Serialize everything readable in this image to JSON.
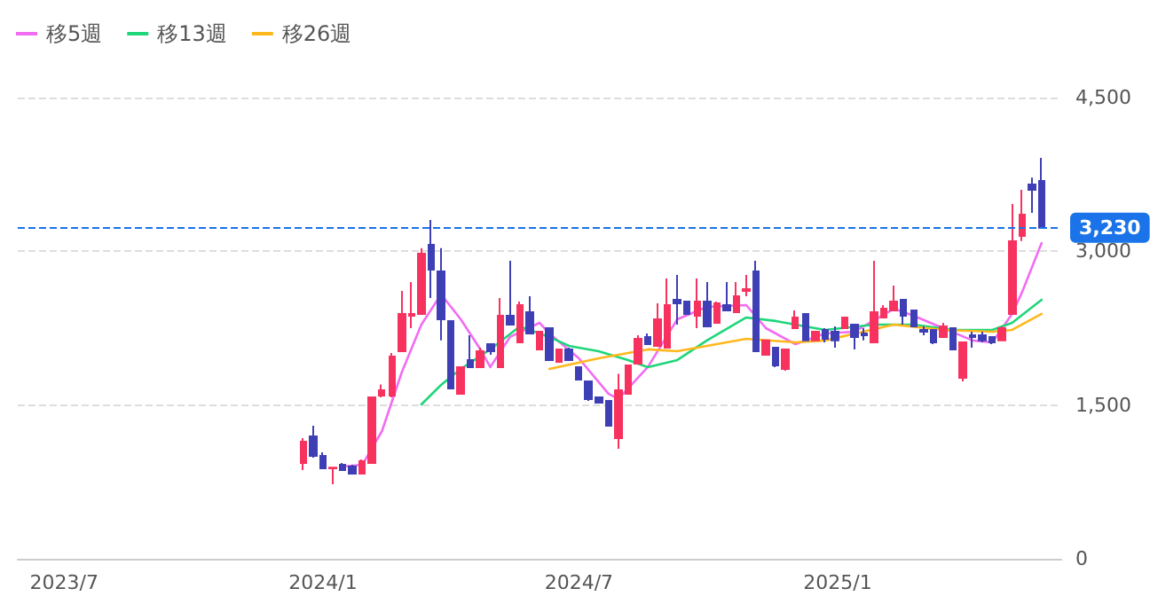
{
  "chart_data": {
    "type": "candlestick",
    "x": [
      "2023-12-18",
      "2023-12-25",
      "2024-01-01",
      "2024-01-08",
      "2024-01-15",
      "2024-01-22",
      "2024-01-29",
      "2024-02-05",
      "2024-02-12",
      "2024-02-19",
      "2024-02-26",
      "2024-03-04",
      "2024-03-11",
      "2024-03-18",
      "2024-03-25",
      "2024-04-01",
      "2024-04-08",
      "2024-04-15",
      "2024-04-22",
      "2024-04-29",
      "2024-05-06",
      "2024-05-13",
      "2024-05-20",
      "2024-05-27",
      "2024-06-03",
      "2024-06-10",
      "2024-06-17",
      "2024-06-24",
      "2024-07-01",
      "2024-07-08",
      "2024-07-15",
      "2024-07-22",
      "2024-07-29",
      "2024-08-05",
      "2024-08-12",
      "2024-08-19",
      "2024-08-26",
      "2024-09-02",
      "2024-09-09",
      "2024-09-16",
      "2024-09-23",
      "2024-09-30",
      "2024-10-07",
      "2024-10-14",
      "2024-10-21",
      "2024-10-28",
      "2024-11-04",
      "2024-11-11",
      "2024-11-18",
      "2024-11-25",
      "2024-12-02",
      "2024-12-09",
      "2024-12-16",
      "2024-12-23",
      "2024-12-30",
      "2025-01-06",
      "2025-01-13",
      "2025-01-20",
      "2025-01-27",
      "2025-02-03",
      "2025-02-10",
      "2025-02-17",
      "2025-02-24",
      "2025-03-03",
      "2025-03-10",
      "2025-03-17",
      "2025-03-24",
      "2025-03-31",
      "2025-04-07",
      "2025-04-14",
      "2025-04-21",
      "2025-04-28",
      "2025-05-05",
      "2025-05-12",
      "2025-05-19",
      "2025-05-26"
    ],
    "ohlc": [
      [
        935,
        1177,
        866,
        1142
      ],
      [
        1194,
        1298,
        987,
        1004
      ],
      [
        1004,
        1038,
        883,
        883
      ],
      [
        883,
        895,
        727,
        890
      ],
      [
        917,
        935,
        866,
        866
      ],
      [
        900,
        917,
        831,
        831
      ],
      [
        831,
        969,
        831,
        952
      ],
      [
        935,
        1575,
        935,
        1575
      ],
      [
        1592,
        1700,
        1575,
        1644
      ],
      [
        1592,
        2008,
        1575,
        1973
      ],
      [
        2025,
        2614,
        2025,
        2389
      ],
      [
        2371,
        2700,
        2250,
        2389
      ],
      [
        2389,
        3030,
        2389,
        2977
      ],
      [
        3064,
        3305,
        2545,
        2821
      ],
      [
        2804,
        3030,
        2130,
        2337
      ],
      [
        2320,
        2320,
        1662,
        1662
      ],
      [
        1610,
        1870,
        1610,
        1870
      ],
      [
        1939,
        2180,
        1870,
        1870
      ],
      [
        1870,
        2060,
        1870,
        2025
      ],
      [
        2094,
        2094,
        1990,
        2025
      ],
      [
        1870,
        2545,
        1870,
        2371
      ],
      [
        2371,
        2908,
        2285,
        2285
      ],
      [
        2112,
        2510,
        2112,
        2475
      ],
      [
        2406,
        2562,
        2198,
        2198
      ],
      [
        2043,
        2216,
        2043,
        2216
      ],
      [
        2250,
        2250,
        1939,
        1939
      ],
      [
        1921,
        2043,
        1921,
        2043
      ],
      [
        2043,
        2060,
        1939,
        1939
      ],
      [
        1870,
        1870,
        1748,
        1748
      ],
      [
        1731,
        1731,
        1540,
        1558
      ],
      [
        1575,
        1575,
        1523,
        1523
      ],
      [
        1540,
        1540,
        1298,
        1298
      ],
      [
        1177,
        1805,
        1073,
        1644
      ],
      [
        1610,
        1887,
        1610,
        1887
      ],
      [
        1904,
        2180,
        1904,
        2146
      ],
      [
        2164,
        2198,
        2094,
        2094
      ],
      [
        2077,
        2493,
        2077,
        2337
      ],
      [
        2060,
        2735,
        2060,
        2475
      ],
      [
        2527,
        2770,
        2285,
        2493
      ],
      [
        2510,
        2510,
        2389,
        2389
      ],
      [
        2371,
        2735,
        2250,
        2510
      ],
      [
        2510,
        2700,
        2268,
        2268
      ],
      [
        2302,
        2510,
        2302,
        2493
      ],
      [
        2475,
        2700,
        2423,
        2423
      ],
      [
        2406,
        2700,
        2406,
        2562
      ],
      [
        2614,
        2770,
        2562,
        2631
      ],
      [
        2804,
        2908,
        2025,
        2025
      ],
      [
        1990,
        2130,
        1990,
        2130
      ],
      [
        2060,
        2060,
        1870,
        1887
      ],
      [
        1852,
        2043,
        1835,
        2043
      ],
      [
        2250,
        2423,
        2250,
        2354
      ],
      [
        2389,
        2389,
        2130,
        2130
      ],
      [
        2130,
        2216,
        2130,
        2216
      ],
      [
        2233,
        2250,
        2112,
        2146
      ],
      [
        2216,
        2268,
        2060,
        2130
      ],
      [
        2250,
        2354,
        2250,
        2354
      ],
      [
        2285,
        2285,
        2043,
        2164
      ],
      [
        2198,
        2250,
        2130,
        2181
      ],
      [
        2112,
        2908,
        2112,
        2406
      ],
      [
        2354,
        2475,
        2354,
        2440
      ],
      [
        2423,
        2666,
        2423,
        2510
      ],
      [
        2527,
        2527,
        2285,
        2371
      ],
      [
        2423,
        2423,
        2268,
        2268
      ],
      [
        2233,
        2268,
        2181,
        2216
      ],
      [
        2233,
        2233,
        2094,
        2112
      ],
      [
        2164,
        2302,
        2164,
        2268
      ],
      [
        2250,
        2250,
        2043,
        2043
      ],
      [
        1766,
        2112,
        1731,
        2112
      ],
      [
        2181,
        2216,
        2060,
        2164
      ],
      [
        2181,
        2216,
        2112,
        2130
      ],
      [
        2164,
        2164,
        2094,
        2112
      ],
      [
        2130,
        2268,
        2130,
        2250
      ],
      [
        2389,
        3462,
        2389,
        3098
      ],
      [
        3150,
        3600,
        3100,
        3358
      ],
      [
        3652,
        3720,
        3375,
        3600
      ],
      [
        3687,
        3912,
        3230,
        3230
      ]
    ],
    "colors": [
      "#f7325e",
      "#3f3fb5",
      "#3f3fb5",
      "#f7325e",
      "#3f3fb5",
      "#3f3fb5",
      "#f7325e",
      "#f7325e",
      "#f7325e",
      "#f7325e",
      "#f7325e",
      "#f7325e",
      "#f7325e",
      "#3f3fb5",
      "#3f3fb5",
      "#3f3fb5",
      "#f7325e",
      "#3f3fb5",
      "#f7325e",
      "#3f3fb5",
      "#f7325e",
      "#3f3fb5",
      "#f7325e",
      "#3f3fb5",
      "#f7325e",
      "#3f3fb5",
      "#f7325e",
      "#3f3fb5",
      "#3f3fb5",
      "#3f3fb5",
      "#3f3fb5",
      "#3f3fb5",
      "#f7325e",
      "#f7325e",
      "#f7325e",
      "#3f3fb5",
      "#f7325e",
      "#f7325e",
      "#3f3fb5",
      "#3f3fb5",
      "#f7325e",
      "#3f3fb5",
      "#f7325e",
      "#3f3fb5",
      "#f7325e",
      "#f7325e",
      "#3f3fb5",
      "#f7325e",
      "#3f3fb5",
      "#f7325e",
      "#f7325e",
      "#3f3fb5",
      "#f7325e",
      "#3f3fb5",
      "#3f3fb5",
      "#f7325e",
      "#3f3fb5",
      "#3f3fb5",
      "#f7325e",
      "#f7325e",
      "#f7325e",
      "#3f3fb5",
      "#3f3fb5",
      "#3f3fb5",
      "#3f3fb5",
      "#f7325e",
      "#3f3fb5",
      "#f7325e",
      "#3f3fb5",
      "#3f3fb5",
      "#3f3fb5",
      "#f7325e",
      "#f7325e",
      "#f7325e",
      "#3f3fb5",
      "#3f3fb5"
    ],
    "series": [
      {
        "name": "移5週",
        "type": "line",
        "color": "#f26cf2",
        "x": [
          "2024-01-15",
          "2024-01-29",
          "2024-02-12",
          "2024-02-26",
          "2024-03-11",
          "2024-03-25",
          "2024-04-08",
          "2024-04-22",
          "2024-04-29",
          "2024-05-13",
          "2024-06-03",
          "2024-06-10",
          "2024-07-01",
          "2024-07-22",
          "2024-07-29",
          "2024-08-19",
          "2024-09-09",
          "2024-09-30",
          "2024-10-28",
          "2024-11-11",
          "2024-12-02",
          "2024-12-23",
          "2025-01-13",
          "2025-02-10",
          "2025-02-24",
          "2025-03-17",
          "2025-04-07",
          "2025-04-21",
          "2025-05-05",
          "2025-05-12",
          "2025-05-26"
        ],
        "values": [
          900,
          917,
          1246,
          1817,
          2285,
          2580,
          2337,
          2043,
          1870,
          2164,
          2302,
          2198,
          1956,
          1610,
          1558,
          1870,
          2337,
          2458,
          2475,
          2250,
          2094,
          2198,
          2216,
          2440,
          2371,
          2250,
          2130,
          2112,
          2389,
          2597,
          3080
        ]
      },
      {
        "name": "移13週",
        "type": "line",
        "color": "#1fd67a",
        "x": [
          "2024-03-11",
          "2024-03-25",
          "2024-04-08",
          "2024-04-29",
          "2024-05-20",
          "2024-06-10",
          "2024-06-24",
          "2024-07-15",
          "2024-08-05",
          "2024-08-19",
          "2024-09-09",
          "2024-09-30",
          "2024-10-28",
          "2024-11-18",
          "2024-12-09",
          "2024-12-23",
          "2025-01-27",
          "2025-02-24",
          "2025-03-24",
          "2025-04-21",
          "2025-05-05",
          "2025-05-26"
        ],
        "values": [
          1506,
          1696,
          1852,
          2043,
          2268,
          2164,
          2077,
          2025,
          1939,
          1870,
          1939,
          2130,
          2354,
          2320,
          2268,
          2233,
          2285,
          2285,
          2233,
          2233,
          2302,
          2527
        ]
      },
      {
        "name": "移26週",
        "type": "line",
        "color": "#ffb81c",
        "x": [
          "2024-06-10",
          "2024-07-15",
          "2024-08-19",
          "2024-09-09",
          "2024-10-28",
          "2024-12-02",
          "2024-12-23",
          "2025-02-10",
          "2025-03-17",
          "2025-04-21",
          "2025-05-05",
          "2025-05-26"
        ],
        "values": [
          1852,
          1956,
          2043,
          2025,
          2146,
          2112,
          2130,
          2285,
          2233,
          2216,
          2233,
          2389
        ]
      }
    ],
    "xlim": [
      "2023-05-29",
      "2025-06-09"
    ],
    "xticks": [
      {
        "value": "2023-07-01",
        "label": "2023/7"
      },
      {
        "value": "2024-01-01",
        "label": "2024/1"
      },
      {
        "value": "2024-07-01",
        "label": "2024/7"
      },
      {
        "value": "2025-01-01",
        "label": "2025/1"
      }
    ],
    "ylim": [
      0,
      4500
    ],
    "yticks": [
      0,
      {
        "value": 1500,
        "label": "1,500"
      },
      {
        "value": 3000,
        "label": "3,000"
      },
      {
        "value": 4500,
        "label": "4,500"
      }
    ],
    "ref_lines": [
      {
        "axis": "y",
        "value": 3230,
        "label": "3,230",
        "color": "#1a73e8",
        "line_style": "dashed"
      }
    ],
    "grid": "y",
    "legend": "top left",
    "marker": "none",
    "line_style": "solid"
  }
}
